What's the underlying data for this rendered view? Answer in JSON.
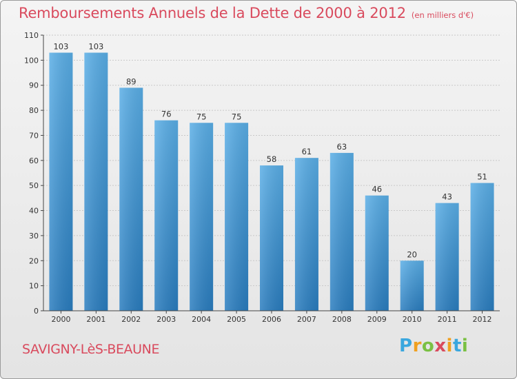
{
  "header": {
    "title": "Remboursements Annuels de la Dette de 2000 à 2012",
    "unit": "(en milliers d'€)"
  },
  "footer": {
    "city": "SAVIGNY-LèS-BEAUNE",
    "logo_letters": [
      "P",
      "r",
      "o",
      "x",
      "i",
      "t",
      "i"
    ],
    "logo_colors": [
      "#3aa7de",
      "#f0a020",
      "#7ac043",
      "#d94a5d",
      "#f0a020",
      "#3aa7de",
      "#7ac043"
    ]
  },
  "chart_data": {
    "type": "bar",
    "categories": [
      "2000",
      "2001",
      "2002",
      "2003",
      "2004",
      "2005",
      "2006",
      "2007",
      "2008",
      "2009",
      "2010",
      "2011",
      "2012"
    ],
    "values": [
      103,
      103,
      89,
      76,
      75,
      75,
      58,
      61,
      63,
      46,
      20,
      43,
      51
    ],
    "ylim": [
      0,
      110
    ],
    "yticks": [
      0,
      10,
      20,
      30,
      40,
      50,
      60,
      70,
      80,
      90,
      100,
      110
    ],
    "grid": true,
    "bar_color": "#4fa3e0"
  }
}
